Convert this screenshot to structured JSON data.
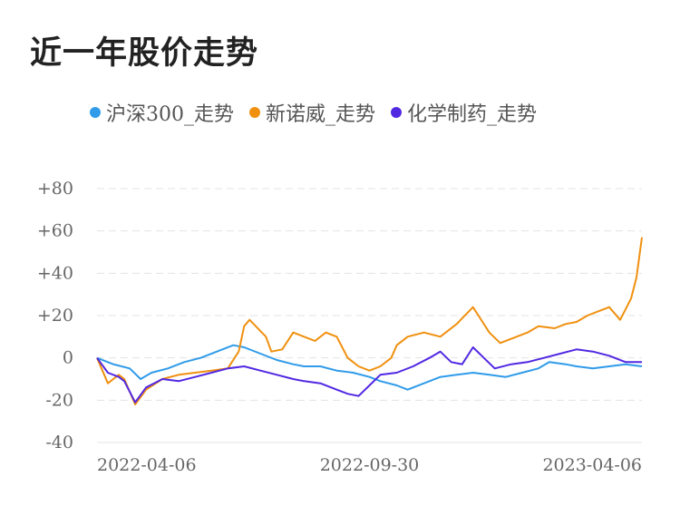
{
  "title": "近一年股价走势",
  "colors": {
    "csi300": "#2f9be9",
    "newnovo": "#f0900f",
    "chem": "#5128e2",
    "grid": "#e3e3e3"
  },
  "legend": [
    {
      "label": "沪深300_走势",
      "color": "#2f9be9"
    },
    {
      "label": "新诺威_走势",
      "color": "#f0900f"
    },
    {
      "label": "化学制药_走势",
      "color": "#5128e2"
    }
  ],
  "chart_data": {
    "type": "line",
    "title": "近一年股价走势",
    "y_tick_labels": [
      "+80",
      "+60",
      "+40",
      "+20",
      "0",
      "-20",
      "-40"
    ],
    "x_tick_labels": [
      "2022-04-06",
      "2022-09-30",
      "2023-04-06"
    ],
    "ylim": [
      -40,
      80
    ],
    "xlim": [
      0,
      1
    ],
    "grid": true,
    "legend_position": "top",
    "series": [
      {
        "name": "沪深300_走势",
        "color": "#2f9be9",
        "x": [
          0,
          0.03,
          0.06,
          0.08,
          0.1,
          0.13,
          0.16,
          0.19,
          0.22,
          0.25,
          0.27,
          0.3,
          0.33,
          0.36,
          0.38,
          0.41,
          0.44,
          0.47,
          0.5,
          0.52,
          0.55,
          0.57,
          0.6,
          0.63,
          0.66,
          0.69,
          0.72,
          0.75,
          0.78,
          0.81,
          0.83,
          0.86,
          0.88,
          0.91,
          0.94,
          0.97,
          1.0
        ],
        "values": [
          0,
          -3,
          -5,
          -10,
          -7,
          -5,
          -2,
          0,
          3,
          6,
          5,
          2,
          -1,
          -3,
          -4,
          -4,
          -6,
          -7,
          -9,
          -11,
          -13,
          -15,
          -12,
          -9,
          -8,
          -7,
          -8,
          -9,
          -7,
          -5,
          -2,
          -3,
          -4,
          -5,
          -4,
          -3,
          -4
        ]
      },
      {
        "name": "新诺威_走势",
        "color": "#f0900f",
        "x": [
          0,
          0.02,
          0.04,
          0.05,
          0.07,
          0.09,
          0.12,
          0.15,
          0.18,
          0.21,
          0.24,
          0.26,
          0.27,
          0.28,
          0.31,
          0.32,
          0.34,
          0.36,
          0.38,
          0.4,
          0.42,
          0.44,
          0.46,
          0.48,
          0.5,
          0.52,
          0.54,
          0.55,
          0.57,
          0.6,
          0.63,
          0.66,
          0.69,
          0.7,
          0.72,
          0.74,
          0.77,
          0.79,
          0.81,
          0.84,
          0.86,
          0.88,
          0.9,
          0.92,
          0.94,
          0.96,
          0.98,
          0.99,
          1.0
        ],
        "values": [
          0,
          -12,
          -8,
          -10,
          -22,
          -15,
          -10,
          -8,
          -7,
          -6,
          -5,
          3,
          15,
          18,
          10,
          3,
          4,
          12,
          10,
          8,
          12,
          10,
          0,
          -4,
          -6,
          -4,
          0,
          6,
          10,
          12,
          10,
          16,
          24,
          20,
          12,
          7,
          10,
          12,
          15,
          14,
          16,
          17,
          20,
          22,
          24,
          18,
          28,
          38,
          57
        ]
      },
      {
        "name": "化学制药_走势",
        "color": "#5128e2",
        "x": [
          0,
          0.02,
          0.04,
          0.05,
          0.07,
          0.09,
          0.12,
          0.15,
          0.18,
          0.21,
          0.24,
          0.27,
          0.3,
          0.33,
          0.36,
          0.38,
          0.41,
          0.44,
          0.46,
          0.48,
          0.5,
          0.52,
          0.55,
          0.58,
          0.61,
          0.63,
          0.65,
          0.67,
          0.69,
          0.71,
          0.73,
          0.76,
          0.79,
          0.82,
          0.85,
          0.88,
          0.91,
          0.94,
          0.97,
          1.0
        ],
        "values": [
          0,
          -7,
          -9,
          -11,
          -21,
          -14,
          -10,
          -11,
          -9,
          -7,
          -5,
          -4,
          -6,
          -8,
          -10,
          -11,
          -12,
          -15,
          -17,
          -18,
          -13,
          -8,
          -7,
          -4,
          0,
          3,
          -2,
          -3,
          5,
          0,
          -5,
          -3,
          -2,
          0,
          2,
          4,
          3,
          1,
          -2,
          -2
        ]
      }
    ]
  }
}
